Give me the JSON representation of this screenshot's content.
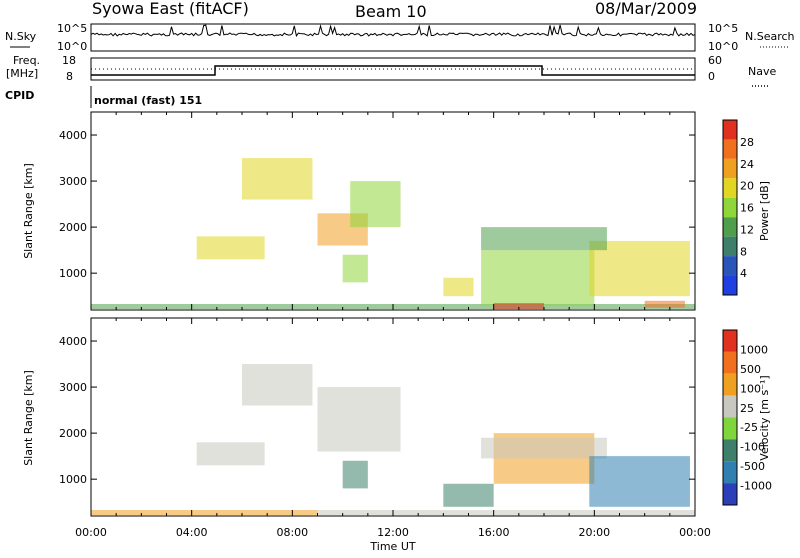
{
  "header": {
    "station": "Syowa East (fitACF)",
    "beam": "Beam 10",
    "date": "08/Mar/2009"
  },
  "left_labels": {
    "nsky": "N.Sky",
    "freq": "Freq.",
    "freq_unit": "[MHz]",
    "cpid": "CPID"
  },
  "right_labels": {
    "nsearch": "N.Search",
    "nave": "Nave"
  },
  "noise_axis": {
    "top": "10^5",
    "bottom": "10^0"
  },
  "freq_axis": {
    "left_ticks": [
      "18",
      "8"
    ],
    "right_ticks": [
      "60",
      "0"
    ]
  },
  "cpid_text": "normal (fast) 151",
  "time_axis": {
    "label": "Time UT",
    "ticks": [
      "00:00",
      "04:00",
      "08:00",
      "12:00",
      "16:00",
      "20:00",
      "00:00"
    ]
  },
  "colors": {
    "power": [
      "#1f3fe0",
      "#2a55b8",
      "#3d7f6a",
      "#4f9e4c",
      "#8fd63b",
      "#e2d624",
      "#f0a020",
      "#f07020",
      "#e03020"
    ],
    "velocity": [
      "#2a3fb8",
      "#2f7fb0",
      "#3d7f6a",
      "#7fd63b",
      "#c8c8c0",
      "#f0a020",
      "#f07020",
      "#e03020"
    ]
  },
  "chart_data": [
    {
      "type": "heatmap",
      "name": "power",
      "ylabel": "Slant Range [km]",
      "xlabel": "Time UT",
      "x_ticks": [
        "00:00",
        "04:00",
        "08:00",
        "12:00",
        "16:00",
        "20:00",
        "00:00"
      ],
      "y_ticks": [
        1000,
        2000,
        3000,
        4000
      ],
      "ylim": [
        200,
        4500
      ],
      "xlim_hours": [
        0,
        24
      ],
      "colorbar": {
        "label": "Power [dB]",
        "ticks": [
          4,
          8,
          12,
          16,
          20,
          24,
          28
        ],
        "range": [
          0,
          30
        ]
      },
      "regions": [
        {
          "t0": 0.0,
          "t1": 24.0,
          "r0": 220,
          "r1": 330,
          "level": 3
        },
        {
          "t0": 6.0,
          "t1": 8.8,
          "r0": 2600,
          "r1": 3500,
          "level": 5
        },
        {
          "t0": 4.2,
          "t1": 6.9,
          "r0": 1300,
          "r1": 1800,
          "level": 5
        },
        {
          "t0": 9.0,
          "t1": 11.0,
          "r0": 1600,
          "r1": 2300,
          "level": 6
        },
        {
          "t0": 10.3,
          "t1": 12.3,
          "r0": 2000,
          "r1": 3000,
          "level": 4
        },
        {
          "t0": 10.0,
          "t1": 11.0,
          "r0": 800,
          "r1": 1400,
          "level": 4
        },
        {
          "t0": 14.0,
          "t1": 15.2,
          "r0": 500,
          "r1": 900,
          "level": 5
        },
        {
          "t0": 15.5,
          "t1": 20.0,
          "r0": 300,
          "r1": 1500,
          "level": 4
        },
        {
          "t0": 16.0,
          "t1": 18.0,
          "r0": 220,
          "r1": 350,
          "level": 8
        },
        {
          "t0": 19.8,
          "t1": 23.8,
          "r0": 500,
          "r1": 1700,
          "level": 5
        },
        {
          "t0": 15.5,
          "t1": 20.5,
          "r0": 1500,
          "r1": 2000,
          "level": 3
        },
        {
          "t0": 22.0,
          "t1": 23.6,
          "r0": 250,
          "r1": 400,
          "level": 7
        }
      ]
    },
    {
      "type": "heatmap",
      "name": "velocity",
      "ylabel": "Slant Range [km]",
      "xlabel": "Time UT",
      "x_ticks": [
        "00:00",
        "04:00",
        "08:00",
        "12:00",
        "16:00",
        "20:00",
        "00:00"
      ],
      "y_ticks": [
        1000,
        2000,
        3000,
        4000
      ],
      "ylim": [
        200,
        4500
      ],
      "xlim_hours": [
        0,
        24
      ],
      "colorbar": {
        "label": "Velocity [m s^-1]",
        "ticks": [
          1000,
          500,
          100,
          25,
          -25,
          -100,
          -500,
          -1000
        ]
      },
      "regions": [
        {
          "t0": 0.0,
          "t1": 9.0,
          "r0": 220,
          "r1": 330,
          "level": 5
        },
        {
          "t0": 9.0,
          "t1": 24.0,
          "r0": 220,
          "r1": 330,
          "level": 4
        },
        {
          "t0": 6.0,
          "t1": 8.8,
          "r0": 2600,
          "r1": 3500,
          "level": 4
        },
        {
          "t0": 4.2,
          "t1": 6.9,
          "r0": 1300,
          "r1": 1800,
          "level": 4
        },
        {
          "t0": 9.0,
          "t1": 12.3,
          "r0": 1600,
          "r1": 3000,
          "level": 4
        },
        {
          "t0": 10.0,
          "t1": 11.0,
          "r0": 800,
          "r1": 1400,
          "level": 2
        },
        {
          "t0": 14.0,
          "t1": 16.0,
          "r0": 400,
          "r1": 900,
          "level": 2
        },
        {
          "t0": 16.0,
          "t1": 20.0,
          "r0": 900,
          "r1": 2000,
          "level": 5
        },
        {
          "t0": 15.5,
          "t1": 20.5,
          "r0": 1450,
          "r1": 1900,
          "level": 4
        },
        {
          "t0": 19.8,
          "t1": 23.8,
          "r0": 400,
          "r1": 1500,
          "level": 1
        }
      ]
    }
  ]
}
